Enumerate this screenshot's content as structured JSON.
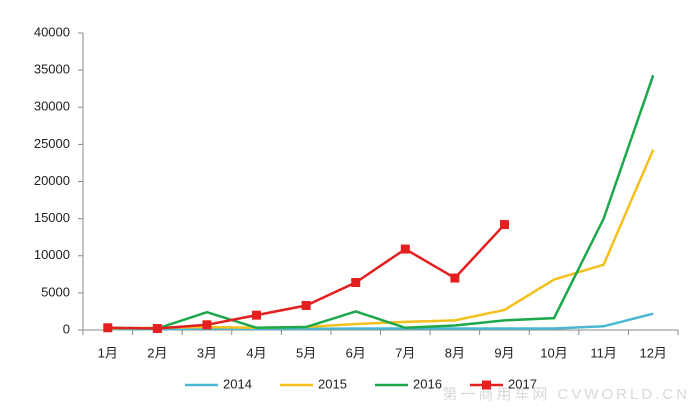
{
  "chart_data": {
    "type": "line",
    "categories": [
      "1月",
      "2月",
      "3月",
      "4月",
      "5月",
      "6月",
      "7月",
      "8月",
      "9月",
      "10月",
      "11月",
      "12月"
    ],
    "series": [
      {
        "name": "2014",
        "color": "#4bb8d2",
        "values": [
          100,
          100,
          200,
          150,
          150,
          200,
          200,
          200,
          200,
          200,
          500,
          2200
        ]
      },
      {
        "name": "2015",
        "color": "#f4c01e",
        "values": [
          200,
          300,
          400,
          300,
          400,
          800,
          1100,
          1300,
          2700,
          6800,
          8800,
          24300
        ]
      },
      {
        "name": "2016",
        "color": "#1ea84c",
        "values": [
          300,
          200,
          2400,
          300,
          400,
          2500,
          300,
          600,
          1300,
          1600,
          15000,
          34300
        ]
      },
      {
        "name": "2017",
        "color": "#e3201f",
        "marker": "square",
        "values": [
          300,
          200,
          700,
          2000,
          3300,
          6400,
          10900,
          7000,
          14200,
          null,
          null,
          null
        ]
      }
    ],
    "ylim": [
      0,
      40000
    ],
    "yticks": [
      0,
      5000,
      10000,
      15000,
      20000,
      25000,
      30000,
      35000,
      40000
    ],
    "watermark": "第一商用车网 CVWORLD.CN"
  }
}
